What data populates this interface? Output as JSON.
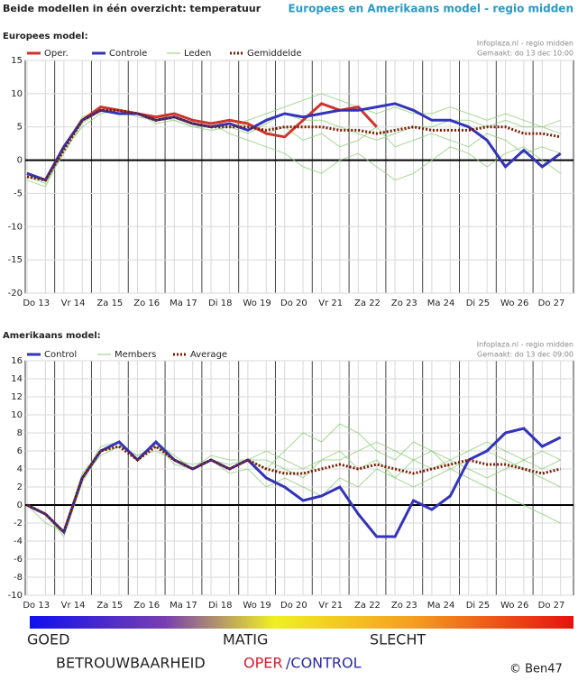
{
  "header": {
    "title": "Beide modellen in één overzicht: temperatuur",
    "subtitle": "Europees en Amerikaans model - regio midden"
  },
  "chart_data": [
    {
      "type": "line",
      "title": "Europees model:",
      "source": "Infoplaza.nl - regio midden",
      "made": "Gemaakt: do 13 dec 10:00",
      "xlim": [
        0.2,
        15.1
      ],
      "x": [
        0.25,
        0.75,
        1.25,
        1.75,
        2.25,
        2.75,
        3.25,
        3.75,
        4.25,
        4.75,
        5.25,
        5.75,
        6.25,
        6.75,
        7.25,
        7.75,
        8.25,
        8.75,
        9.25,
        9.75,
        10.25,
        10.75,
        11.25,
        11.75,
        12.25,
        12.75,
        13.25,
        13.75,
        14.25,
        14.75
      ],
      "xticks": [
        {
          "value": 0.5,
          "label": "Do 13"
        },
        {
          "value": 1.5,
          "label": "Vr 14"
        },
        {
          "value": 2.5,
          "label": "Za 15"
        },
        {
          "value": 3.5,
          "label": "Zo 16"
        },
        {
          "value": 4.5,
          "label": "Ma 17"
        },
        {
          "value": 5.5,
          "label": "Di 18"
        },
        {
          "value": 6.5,
          "label": "Wo 19"
        },
        {
          "value": 7.5,
          "label": "Do 20"
        },
        {
          "value": 8.5,
          "label": "Vr 21"
        },
        {
          "value": 9.5,
          "label": "Za 22"
        },
        {
          "value": 10.5,
          "label": "Zo 23"
        },
        {
          "value": 11.5,
          "label": "Ma 24"
        },
        {
          "value": 12.5,
          "label": "Di 25"
        },
        {
          "value": 13.5,
          "label": "Wo 26"
        },
        {
          "value": 14.5,
          "label": "Do 27"
        }
      ],
      "ylim": [
        -20,
        15
      ],
      "yticks": [
        -20,
        -15,
        -10,
        -5,
        0,
        5,
        10,
        15
      ],
      "grid": true,
      "members": {
        "name": "Leden",
        "color": "#8fd07a",
        "series": [
          [
            -2.5,
            -3.5,
            1,
            5.5,
            7.5,
            7,
            7,
            6,
            6.5,
            5.5,
            5,
            5,
            4,
            5.5,
            7,
            6,
            6,
            5,
            4,
            3,
            4,
            5,
            5,
            6,
            6,
            5,
            6,
            5,
            5,
            4
          ],
          [
            -2,
            -3,
            2,
            6,
            8,
            7.5,
            7,
            6.5,
            6,
            5,
            4.5,
            5,
            6,
            7,
            8,
            9,
            10,
            9,
            8,
            7,
            8,
            7,
            7,
            8,
            7,
            6,
            7,
            6,
            5,
            6
          ],
          [
            -3,
            -4,
            1.5,
            5,
            7,
            7.5,
            6.5,
            6,
            7,
            6,
            5.5,
            4,
            3,
            2,
            1,
            -1,
            -2,
            0,
            1,
            -1,
            -3,
            -2,
            0,
            2,
            1,
            -1,
            1,
            2,
            0,
            -2
          ],
          [
            -2.5,
            -3,
            2,
            6.5,
            7.5,
            7.5,
            7,
            5.5,
            6,
            5,
            5,
            6,
            5,
            4,
            5,
            3,
            4,
            2,
            3,
            5,
            2,
            3,
            4,
            3,
            2,
            4,
            3,
            1,
            2,
            1
          ]
        ]
      },
      "series": [
        {
          "name": "Oper.",
          "color": "#d0332b",
          "values": [
            -2,
            -3,
            2,
            6,
            8,
            7.5,
            7,
            6.5,
            7,
            6,
            5.5,
            6,
            5.5,
            4,
            3.5,
            6,
            8.5,
            7.5,
            8,
            5,
            null,
            null,
            null,
            null,
            null,
            null,
            null,
            null,
            null,
            null
          ]
        },
        {
          "name": "Controle",
          "color": "#3333bb",
          "values": [
            -2,
            -3,
            2,
            6,
            7.5,
            7,
            7,
            6,
            6.5,
            5.5,
            5,
            5.5,
            4.5,
            6,
            7,
            6.5,
            7,
            7.5,
            7.5,
            8,
            8.5,
            7.5,
            6,
            6,
            5,
            3,
            -1,
            1.5,
            -1,
            1
          ]
        },
        {
          "name": "Gemiddelde",
          "color": "#7a1a00",
          "style": "dotted",
          "values": [
            -2.5,
            -3,
            1.5,
            6,
            7.5,
            7.5,
            7,
            6,
            6.5,
            5.5,
            5,
            5,
            5,
            4.5,
            5,
            5,
            5,
            4.5,
            4.5,
            4,
            4.5,
            5,
            4.5,
            4.5,
            4.5,
            5,
            5,
            4,
            4,
            3.5
          ]
        }
      ]
    },
    {
      "type": "line",
      "title": "Amerikaans model:",
      "source": "Infoplaza.nl - regio midden",
      "made": "Gemaakt: do 13 dec 09:00",
      "xlim": [
        0.2,
        15.1
      ],
      "x": [
        0.25,
        0.75,
        1.25,
        1.75,
        2.25,
        2.75,
        3.25,
        3.75,
        4.25,
        4.75,
        5.25,
        5.75,
        6.25,
        6.75,
        7.25,
        7.75,
        8.25,
        8.75,
        9.25,
        9.75,
        10.25,
        10.75,
        11.25,
        11.75,
        12.25,
        12.75,
        13.25,
        13.75,
        14.25,
        14.75
      ],
      "xticks": [
        {
          "value": 0.5,
          "label": "Do 13"
        },
        {
          "value": 1.5,
          "label": "Vr 14"
        },
        {
          "value": 2.5,
          "label": "Za 15"
        },
        {
          "value": 3.5,
          "label": "Zo 16"
        },
        {
          "value": 4.5,
          "label": "Ma 17"
        },
        {
          "value": 5.5,
          "label": "Di 18"
        },
        {
          "value": 6.5,
          "label": "Wo 19"
        },
        {
          "value": 7.5,
          "label": "Do 20"
        },
        {
          "value": 8.5,
          "label": "Vr 21"
        },
        {
          "value": 9.5,
          "label": "Za 22"
        },
        {
          "value": 10.5,
          "label": "Zo 23"
        },
        {
          "value": 11.5,
          "label": "Ma 24"
        },
        {
          "value": 12.5,
          "label": "Di 25"
        },
        {
          "value": 13.5,
          "label": "Wo 26"
        },
        {
          "value": 14.5,
          "label": "Do 27"
        }
      ],
      "ylim": [
        -10,
        16
      ],
      "yticks": [
        -10,
        -8,
        -6,
        -4,
        -2,
        0,
        2,
        4,
        6,
        8,
        10,
        12,
        14,
        16
      ],
      "grid": true,
      "members": {
        "name": "Members",
        "color": "#8fd07a",
        "series": [
          [
            0,
            -1,
            -3,
            3.5,
            6,
            6.5,
            5.5,
            6.5,
            5,
            4.5,
            5,
            4.5,
            5,
            5,
            4,
            3,
            5,
            6,
            4,
            5,
            3,
            2,
            3,
            4,
            5,
            6,
            5,
            4,
            3,
            2
          ],
          [
            0,
            -1,
            -3,
            3,
            6.5,
            7,
            5,
            7,
            4.5,
            4,
            5.5,
            5,
            5,
            4,
            6,
            8,
            7,
            9,
            8,
            6,
            5,
            7,
            6,
            5,
            6,
            7,
            6,
            5,
            4,
            5
          ],
          [
            0,
            -2,
            -3,
            3,
            5.5,
            6.5,
            5.5,
            6,
            5,
            4,
            5,
            3.5,
            4,
            2,
            3,
            2,
            1,
            3,
            2,
            4,
            3,
            5,
            6,
            4,
            3,
            2,
            1,
            0,
            -1,
            -2
          ],
          [
            0,
            -1,
            -3.5,
            2.5,
            6,
            7,
            5,
            7,
            5.5,
            4,
            5,
            4,
            5,
            6,
            5,
            4,
            5,
            5,
            6,
            7,
            6,
            5,
            4,
            5,
            4,
            3,
            4,
            5,
            6,
            5
          ]
        ]
      },
      "series": [
        {
          "name": "Control",
          "color": "#3333bb",
          "values": [
            0,
            -1,
            -3,
            3,
            6,
            7,
            5,
            7,
            5,
            4,
            5,
            4,
            5,
            3,
            2,
            0.5,
            1,
            2,
            -1,
            -3.5,
            -3.5,
            0.5,
            -0.5,
            1,
            5,
            6,
            8,
            8.5,
            6.5,
            7.5
          ]
        },
        {
          "name": "Average",
          "color": "#7a1a00",
          "style": "dotted",
          "values": [
            0,
            -1,
            -3,
            3,
            6,
            6.5,
            5,
            6.5,
            5,
            4,
            5,
            4,
            5,
            4,
            3.5,
            3.5,
            4,
            4.5,
            4,
            4.5,
            4,
            3.5,
            4,
            4.5,
            5,
            4.5,
            4.5,
            4,
            3.5,
            4
          ]
        }
      ]
    }
  ],
  "footer": {
    "good": "GOED",
    "moderate": "MATIG",
    "bad": "SLECHT",
    "reliability": "BETROUWBAARHEID",
    "oper": "OPER",
    "control": "/CONTROL",
    "copyright": "© Ben47"
  }
}
